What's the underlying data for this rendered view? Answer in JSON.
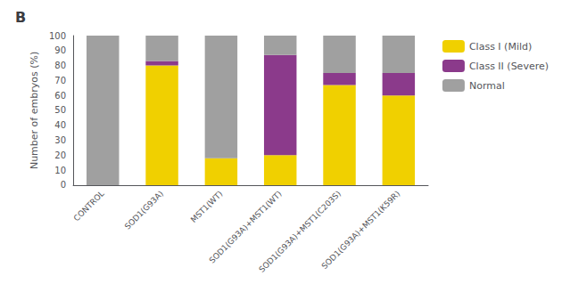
{
  "chart_data": {
    "type": "bar",
    "title": "B",
    "ylabel": "Number of embryos (%)",
    "categories": [
      "CONTROL",
      "SOD1(G93A)",
      "MST1(WT)",
      "SOD1(G93A)+MST1(WT)",
      "SOD1(G93A)+MST1(C203S)",
      "SOD1(G93A)+MST1(K59R)"
    ],
    "series": [
      {
        "name": "Class I (Mild)",
        "color": "#f0d000",
        "values": [
          0,
          80,
          18,
          20,
          67,
          60
        ]
      },
      {
        "name": "Class II (Severe)",
        "color": "#8b3a8b",
        "values": [
          0,
          3,
          0,
          67,
          8,
          15
        ]
      },
      {
        "name": "Normal",
        "color": "#a0a0a0",
        "values": [
          100,
          17,
          82,
          13,
          25,
          25
        ]
      }
    ],
    "stacked": true,
    "ylim": [
      0,
      100
    ],
    "yticks": [
      0,
      10,
      20,
      30,
      40,
      50,
      60,
      70,
      80,
      90,
      100
    ],
    "legend": "upper right",
    "grid": false
  }
}
